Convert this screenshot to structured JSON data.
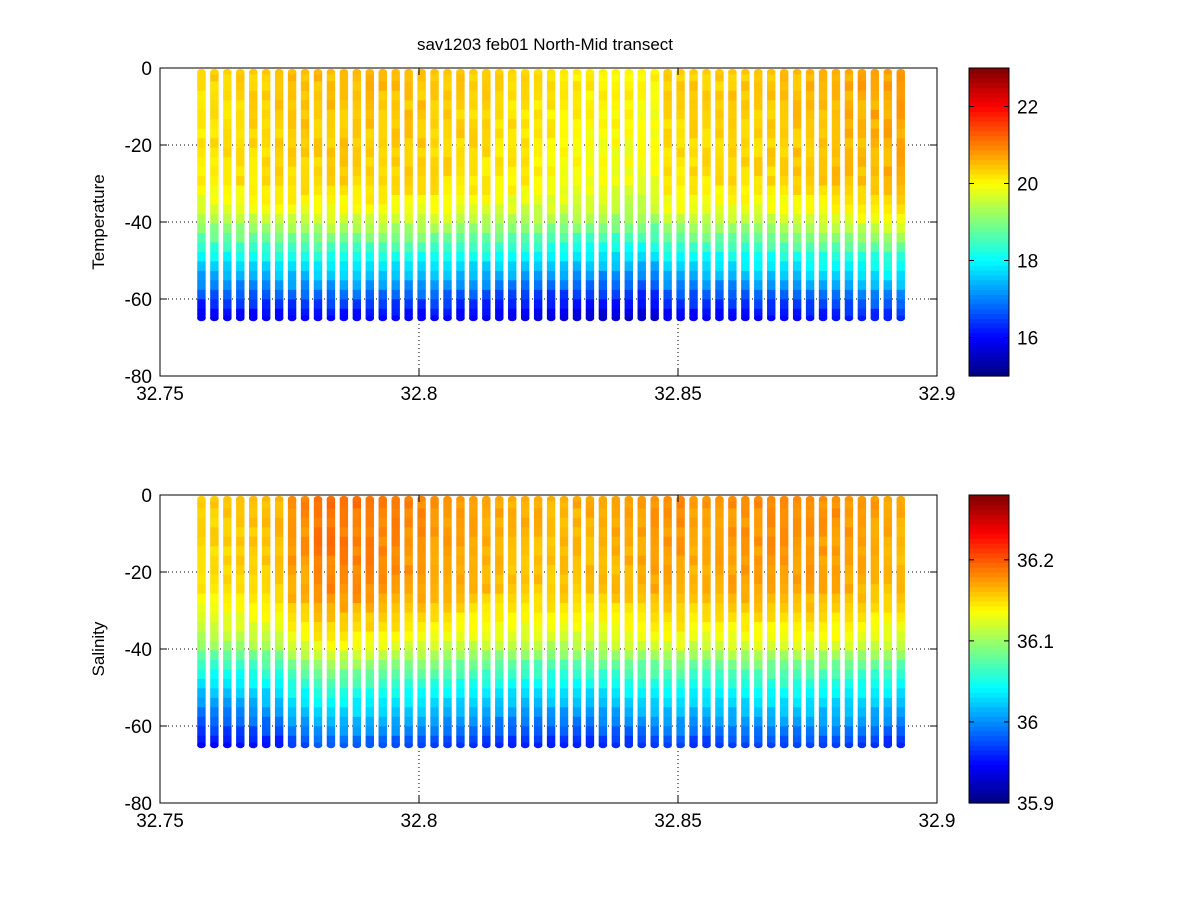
{
  "figure": {
    "title": "sav1203 feb01 North-Mid transect"
  },
  "colors": {
    "colormap": "jet",
    "axes_edge": "#000000",
    "grid": "#000000",
    "background": "#ffffff"
  },
  "chart_data": [
    {
      "type": "scatter",
      "ylabel": "Temperature",
      "xlim": [
        32.75,
        32.9
      ],
      "ylim": [
        -80,
        0
      ],
      "xticks": [
        "32.75",
        "32.8",
        "32.85",
        "32.9"
      ],
      "yticks": [
        "0",
        "-20",
        "-40",
        "-60",
        "-80"
      ],
      "grid": true,
      "colorbar": {
        "clim": [
          15,
          23
        ],
        "ticks": [
          "16",
          "18",
          "20",
          "22"
        ]
      },
      "profiles": {
        "x_start": 32.758,
        "x_end": 32.893,
        "count": 55,
        "depth_min": -1,
        "depth_max": -65
      },
      "vertical_structure": [
        {
          "depth": 0,
          "value": 20.3
        },
        {
          "depth": -30,
          "value": 20.1
        },
        {
          "depth": -38,
          "value": 19.6
        },
        {
          "depth": -45,
          "value": 18.6
        },
        {
          "depth": -50,
          "value": 17.8
        },
        {
          "depth": -55,
          "value": 17.2
        },
        {
          "depth": -60,
          "value": 16.4
        },
        {
          "depth": -65,
          "value": 15.8
        }
      ]
    },
    {
      "type": "scatter",
      "ylabel": "Salinity",
      "xlim": [
        32.75,
        32.9
      ],
      "ylim": [
        -80,
        0
      ],
      "xticks": [
        "32.75",
        "32.8",
        "32.85",
        "32.9"
      ],
      "yticks": [
        "0",
        "-20",
        "-40",
        "-60",
        "-80"
      ],
      "grid": true,
      "colorbar": {
        "clim": [
          35.9,
          36.28
        ],
        "ticks": [
          "35.9",
          "36",
          "36.1",
          "36.2"
        ]
      },
      "profiles": {
        "x_start": 32.758,
        "x_end": 32.893,
        "count": 55,
        "depth_min": -1,
        "depth_max": -65
      },
      "vertical_structure": [
        {
          "depth": 0,
          "value": 36.17
        },
        {
          "depth": -25,
          "value": 36.16
        },
        {
          "depth": -38,
          "value": 36.12
        },
        {
          "depth": -45,
          "value": 36.07
        },
        {
          "depth": -52,
          "value": 36.03
        },
        {
          "depth": -60,
          "value": 35.99
        },
        {
          "depth": -65,
          "value": 35.96
        }
      ]
    }
  ]
}
